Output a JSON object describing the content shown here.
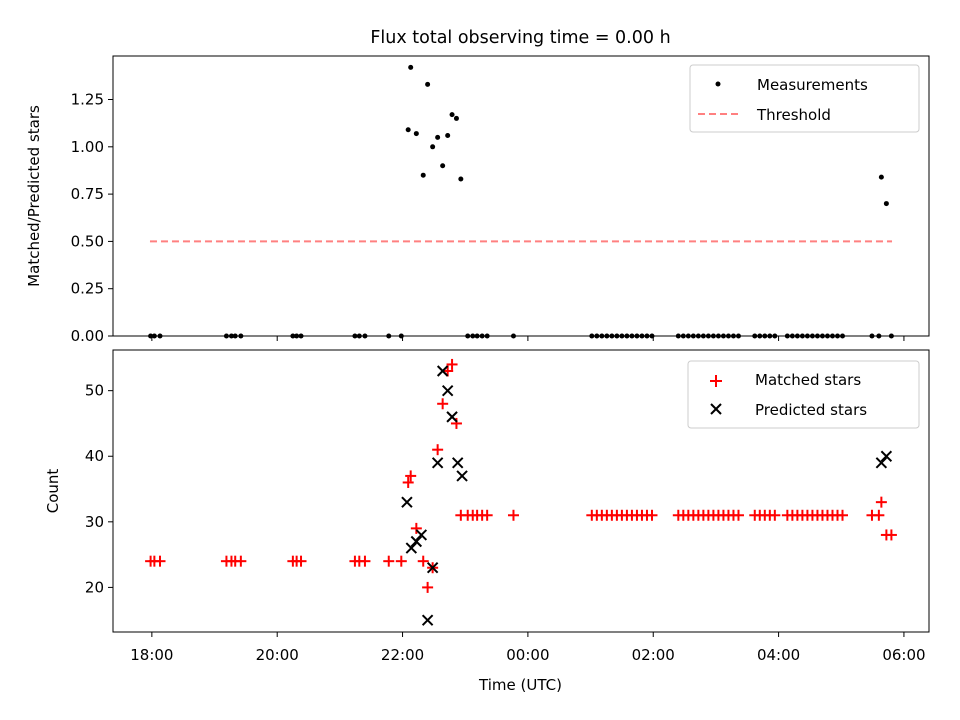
{
  "figure": {
    "title": "Flux total observing time = 0.00 h",
    "xlabel": "Time (UTC)"
  },
  "chart_data": [
    {
      "type": "scatter",
      "panel": "top",
      "ylabel": "Matched/Predicted stars",
      "ylim": [
        0,
        1.48
      ],
      "yticks": [
        0,
        0.25,
        0.5,
        0.75,
        1.0,
        1.25
      ],
      "ytick_labels": [
        "0.00",
        "0.25",
        "0.50",
        "0.75",
        "1.00",
        "1.25"
      ],
      "xlim": [
        17.38,
        30.4
      ],
      "xticks": [
        18,
        20,
        22,
        24,
        26,
        28,
        30
      ],
      "xtick_labels": [
        "18:00",
        "20:00",
        "22:00",
        "00:00",
        "02:00",
        "04:00",
        "06:00"
      ],
      "legend": {
        "placement": "top-right",
        "entries": [
          "Measurements",
          "Threshold"
        ]
      },
      "series": [
        {
          "name": "Measurements",
          "color": "#000000",
          "marker": "dot",
          "points": [
            [
              17.98,
              0
            ],
            [
              18.04,
              0
            ],
            [
              18.13,
              0
            ],
            [
              19.19,
              0
            ],
            [
              19.27,
              0
            ],
            [
              19.33,
              0
            ],
            [
              19.42,
              0
            ],
            [
              20.25,
              0
            ],
            [
              20.31,
              0
            ],
            [
              20.38,
              0
            ],
            [
              21.24,
              0
            ],
            [
              21.31,
              0
            ],
            [
              21.4,
              0
            ],
            [
              21.78,
              0
            ],
            [
              21.98,
              0
            ],
            [
              22.09,
              1.09
            ],
            [
              22.13,
              1.42
            ],
            [
              22.22,
              1.07
            ],
            [
              22.33,
              0.85
            ],
            [
              22.4,
              1.33
            ],
            [
              22.48,
              1.0
            ],
            [
              22.56,
              1.05
            ],
            [
              22.64,
              0.9
            ],
            [
              22.72,
              1.06
            ],
            [
              22.79,
              1.17
            ],
            [
              22.86,
              1.15
            ],
            [
              22.93,
              0.83
            ],
            [
              23.04,
              0
            ],
            [
              23.12,
              0
            ],
            [
              23.19,
              0
            ],
            [
              23.27,
              0
            ],
            [
              23.35,
              0
            ],
            [
              23.77,
              0
            ],
            [
              25.02,
              0
            ],
            [
              25.1,
              0
            ],
            [
              25.18,
              0
            ],
            [
              25.26,
              0
            ],
            [
              25.34,
              0
            ],
            [
              25.42,
              0
            ],
            [
              25.5,
              0
            ],
            [
              25.58,
              0
            ],
            [
              25.66,
              0
            ],
            [
              25.74,
              0
            ],
            [
              25.82,
              0
            ],
            [
              25.9,
              0
            ],
            [
              25.98,
              0
            ],
            [
              26.4,
              0
            ],
            [
              26.48,
              0
            ],
            [
              26.56,
              0
            ],
            [
              26.64,
              0
            ],
            [
              26.72,
              0
            ],
            [
              26.8,
              0
            ],
            [
              26.88,
              0
            ],
            [
              26.96,
              0
            ],
            [
              27.04,
              0
            ],
            [
              27.12,
              0
            ],
            [
              27.2,
              0
            ],
            [
              27.28,
              0
            ],
            [
              27.36,
              0
            ],
            [
              27.62,
              0
            ],
            [
              27.7,
              0
            ],
            [
              27.78,
              0
            ],
            [
              27.86,
              0
            ],
            [
              27.94,
              0
            ],
            [
              28.14,
              0
            ],
            [
              28.22,
              0
            ],
            [
              28.3,
              0
            ],
            [
              28.38,
              0
            ],
            [
              28.46,
              0
            ],
            [
              28.54,
              0
            ],
            [
              28.62,
              0
            ],
            [
              28.7,
              0
            ],
            [
              28.78,
              0
            ],
            [
              28.86,
              0
            ],
            [
              28.94,
              0
            ],
            [
              29.02,
              0
            ],
            [
              29.49,
              0
            ],
            [
              29.6,
              0
            ],
            [
              29.64,
              0.84
            ],
            [
              29.72,
              0.7
            ],
            [
              29.8,
              0
            ]
          ]
        },
        {
          "name": "Threshold",
          "color": "#ff8080",
          "style": "dashed",
          "x": [
            17.97,
            29.81
          ],
          "y": [
            0.5,
            0.5
          ]
        }
      ]
    },
    {
      "type": "scatter",
      "panel": "bottom",
      "ylabel": "Count",
      "ylim": [
        13.2,
        56.2
      ],
      "yticks": [
        20,
        30,
        40,
        50
      ],
      "ytick_labels": [
        "20",
        "30",
        "40",
        "50"
      ],
      "xlim": [
        17.38,
        30.4
      ],
      "xticks": [
        18,
        20,
        22,
        24,
        26,
        28,
        30
      ],
      "xtick_labels": [
        "18:00",
        "20:00",
        "22:00",
        "00:00",
        "02:00",
        "04:00",
        "06:00"
      ],
      "legend": {
        "placement": "top-right",
        "entries": [
          "Matched stars",
          "Predicted stars"
        ]
      },
      "series": [
        {
          "name": "Matched stars",
          "color": "#ff0000",
          "marker": "plus",
          "points": [
            [
              17.98,
              24
            ],
            [
              18.04,
              24
            ],
            [
              18.13,
              24
            ],
            [
              19.19,
              24
            ],
            [
              19.27,
              24
            ],
            [
              19.33,
              24
            ],
            [
              19.42,
              24
            ],
            [
              20.25,
              24
            ],
            [
              20.31,
              24
            ],
            [
              20.38,
              24
            ],
            [
              21.24,
              24
            ],
            [
              21.31,
              24
            ],
            [
              21.4,
              24
            ],
            [
              21.78,
              24
            ],
            [
              21.98,
              24
            ],
            [
              22.09,
              36
            ],
            [
              22.13,
              37
            ],
            [
              22.22,
              29
            ],
            [
              22.33,
              24
            ],
            [
              22.4,
              20
            ],
            [
              22.48,
              23
            ],
            [
              22.56,
              41
            ],
            [
              22.64,
              48
            ],
            [
              22.72,
              53
            ],
            [
              22.79,
              54
            ],
            [
              22.86,
              45
            ],
            [
              22.93,
              31
            ],
            [
              23.04,
              31
            ],
            [
              23.12,
              31
            ],
            [
              23.19,
              31
            ],
            [
              23.27,
              31
            ],
            [
              23.35,
              31
            ],
            [
              23.77,
              31
            ],
            [
              25.02,
              31
            ],
            [
              25.1,
              31
            ],
            [
              25.18,
              31
            ],
            [
              25.26,
              31
            ],
            [
              25.34,
              31
            ],
            [
              25.42,
              31
            ],
            [
              25.5,
              31
            ],
            [
              25.58,
              31
            ],
            [
              25.66,
              31
            ],
            [
              25.74,
              31
            ],
            [
              25.82,
              31
            ],
            [
              25.9,
              31
            ],
            [
              25.98,
              31
            ],
            [
              26.4,
              31
            ],
            [
              26.48,
              31
            ],
            [
              26.56,
              31
            ],
            [
              26.64,
              31
            ],
            [
              26.72,
              31
            ],
            [
              26.8,
              31
            ],
            [
              26.88,
              31
            ],
            [
              26.96,
              31
            ],
            [
              27.04,
              31
            ],
            [
              27.12,
              31
            ],
            [
              27.2,
              31
            ],
            [
              27.28,
              31
            ],
            [
              27.36,
              31
            ],
            [
              27.62,
              31
            ],
            [
              27.7,
              31
            ],
            [
              27.78,
              31
            ],
            [
              27.86,
              31
            ],
            [
              27.94,
              31
            ],
            [
              28.14,
              31
            ],
            [
              28.22,
              31
            ],
            [
              28.3,
              31
            ],
            [
              28.38,
              31
            ],
            [
              28.46,
              31
            ],
            [
              28.54,
              31
            ],
            [
              28.62,
              31
            ],
            [
              28.7,
              31
            ],
            [
              28.78,
              31
            ],
            [
              28.86,
              31
            ],
            [
              28.94,
              31
            ],
            [
              29.02,
              31
            ],
            [
              29.49,
              31
            ],
            [
              29.6,
              31
            ],
            [
              29.64,
              33
            ],
            [
              29.72,
              28
            ],
            [
              29.8,
              28
            ]
          ]
        },
        {
          "name": "Predicted stars",
          "color": "#000000",
          "marker": "x",
          "points": [
            [
              22.07,
              33
            ],
            [
              22.14,
              26
            ],
            [
              22.22,
              27
            ],
            [
              22.3,
              28
            ],
            [
              22.4,
              15
            ],
            [
              22.48,
              23
            ],
            [
              22.56,
              39
            ],
            [
              22.64,
              53
            ],
            [
              22.72,
              50
            ],
            [
              22.79,
              46
            ],
            [
              22.88,
              39
            ],
            [
              22.95,
              37
            ],
            [
              29.64,
              39
            ],
            [
              29.72,
              40
            ]
          ]
        }
      ]
    }
  ]
}
